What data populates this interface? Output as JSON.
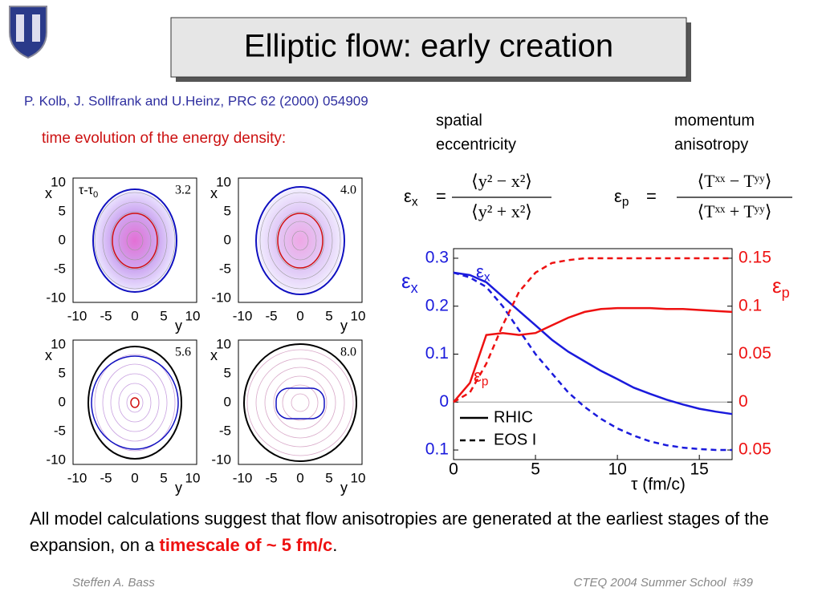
{
  "header": {
    "title": "Elliptic flow: early creation",
    "citation": "P. Kolb, J. Sollfrank and U.Heinz, PRC 62 (2000) 054909"
  },
  "contours": {
    "caption": "time evolution of the energy density:",
    "time_label": {
      "main": "τ-τ",
      "sub": "0"
    },
    "x_label": "x",
    "y_label": "y",
    "ticks": [
      -10,
      -5,
      0,
      5,
      10
    ],
    "panels": [
      {
        "time": "3.2"
      },
      {
        "time": "4.0"
      },
      {
        "time": "5.6"
      },
      {
        "time": "8.0"
      }
    ]
  },
  "equations": [
    {
      "caption": [
        "spatial",
        "eccentricity"
      ],
      "lhs": {
        "main": "ε",
        "sub": "x"
      },
      "numerator": "⟨y² − x²⟩",
      "denominator": "⟨y² + x²⟩"
    },
    {
      "caption": [
        "momentum",
        "anisotropy"
      ],
      "lhs": {
        "main": "ε",
        "sub": "p"
      },
      "numerator": "⟨Tˣˣ − Tʸʸ⟩",
      "denominator": "⟨Tˣˣ + Tʸʸ⟩"
    }
  ],
  "chart_data": {
    "type": "line",
    "x_label": "τ (fm/c)",
    "y_label": {
      "main": "ε",
      "sub": "x"
    },
    "y2_label": {
      "main": "ε",
      "sub": "p"
    },
    "annotations": [
      {
        "main": "ε",
        "sub": "x",
        "color": "#1a1adc"
      },
      {
        "main": "ε",
        "sub": "p",
        "color": "#ee1111"
      }
    ],
    "x": [
      0,
      1,
      2,
      3,
      4,
      5,
      6,
      7,
      8,
      9,
      10,
      11,
      12,
      13,
      14,
      15,
      16,
      17
    ],
    "xlim": [
      0,
      17
    ],
    "xticks": [
      0,
      5,
      10,
      15
    ],
    "ylim": [
      -0.12,
      0.32
    ],
    "yticks": [
      {
        "value": -0.1,
        "label": "0.1"
      },
      0,
      0.1,
      0.2,
      0.3
    ],
    "y2lim": [
      -0.06,
      0.16
    ],
    "y2ticks": [
      {
        "value": -0.05,
        "label": "0.05"
      },
      0,
      0.05,
      0.1,
      0.15
    ],
    "series": [
      {
        "name": "RHIC",
        "style": "solid",
        "color": "#1a1adc",
        "axis": "y",
        "values": [
          0.27,
          0.265,
          0.25,
          0.22,
          0.19,
          0.16,
          0.13,
          0.105,
          0.085,
          0.065,
          0.048,
          0.03,
          0.017,
          0.005,
          -0.005,
          -0.014,
          -0.02,
          -0.025
        ]
      },
      {
        "name": "EOS I",
        "style": "dashed",
        "color": "#1a1adc",
        "axis": "y",
        "values": [
          0.27,
          0.26,
          0.24,
          0.2,
          0.15,
          0.1,
          0.06,
          0.02,
          -0.01,
          -0.035,
          -0.055,
          -0.07,
          -0.082,
          -0.09,
          -0.095,
          -0.098,
          -0.1,
          -0.1
        ]
      },
      {
        "name": "RHIC",
        "style": "solid",
        "color": "#ee1111",
        "axis": "y2",
        "values": [
          0,
          0.02,
          0.07,
          0.072,
          0.07,
          0.072,
          0.08,
          0.088,
          0.094,
          0.097,
          0.098,
          0.098,
          0.098,
          0.097,
          0.097,
          0.096,
          0.095,
          0.094
        ]
      },
      {
        "name": "EOS I",
        "style": "dashed",
        "color": "#ee1111",
        "axis": "y2",
        "values": [
          0,
          0.01,
          0.04,
          0.08,
          0.115,
          0.135,
          0.145,
          0.148,
          0.15,
          0.15,
          0.15,
          0.15,
          0.15,
          0.15,
          0.15,
          0.15,
          0.15,
          0.15
        ]
      }
    ]
  },
  "body": {
    "text": "All model calculations suggest that flow anisotropies are generated at the earliest stages of the expansion, on a ",
    "highlight": "timescale of ~ 5 fm/c",
    "end": "."
  },
  "footer": {
    "left": "Steffen A. Bass",
    "right": "CTEQ 2004 Summer School  #39"
  }
}
